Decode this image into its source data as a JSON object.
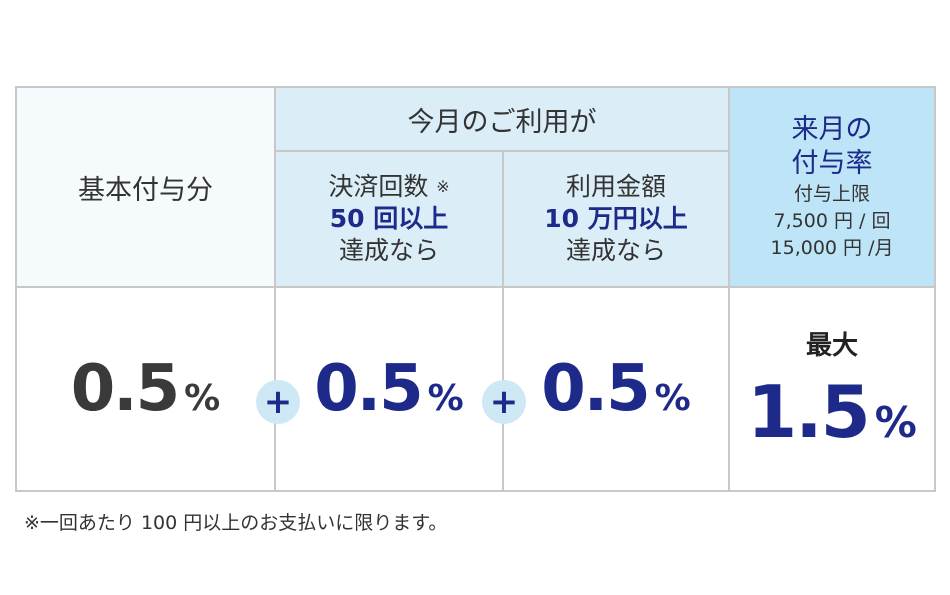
{
  "table": {
    "base_header": "基本付与分",
    "this_month_header": "今月のご利用が",
    "col1": {
      "line1": "決済回数",
      "note_mark": "※",
      "line2": "50 回以上",
      "line3": "達成なら"
    },
    "col2": {
      "line1": "利用金額",
      "line2": "10 万円以上",
      "line3": "達成なら"
    },
    "next_month": {
      "line1": "来月の",
      "line2": "付与率",
      "limit_label": "付与上限",
      "limit_per_time": "7,500 円 / 回",
      "limit_per_month": "15,000 円 /月"
    },
    "values": {
      "base": "0.5",
      "col1": "0.5",
      "col2": "0.5",
      "max_label": "最大",
      "total": "1.5",
      "percent": "%"
    },
    "plus": "+"
  },
  "footnote": "※一回あたり 100 円以上のお支払いに限ります。",
  "colors": {
    "navy": "#1e2a8a",
    "header_light": "#dbeef8",
    "header_accent": "#bde4f7",
    "border": "#c8c8c8"
  }
}
